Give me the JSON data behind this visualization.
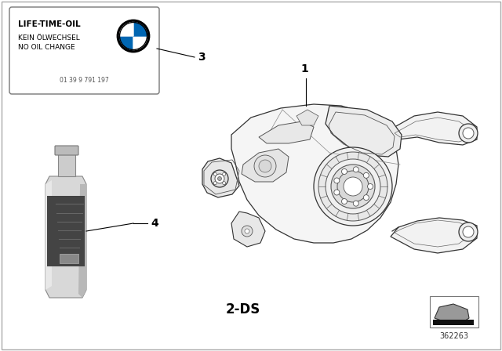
{
  "background_color": "#ffffff",
  "label_1": "1",
  "label_3": "3",
  "label_4": "4",
  "label_2ds": "2-DS",
  "part_number": "362263",
  "sticker_line1": "LIFE-TIME-OIL",
  "sticker_line2": "KEIN ÖLWECHSEL",
  "sticker_line3": "NO OIL CHANGE",
  "sticker_part_num": "01 39 9 791 197",
  "fig_width": 6.4,
  "fig_height": 4.48,
  "dpi": 100
}
